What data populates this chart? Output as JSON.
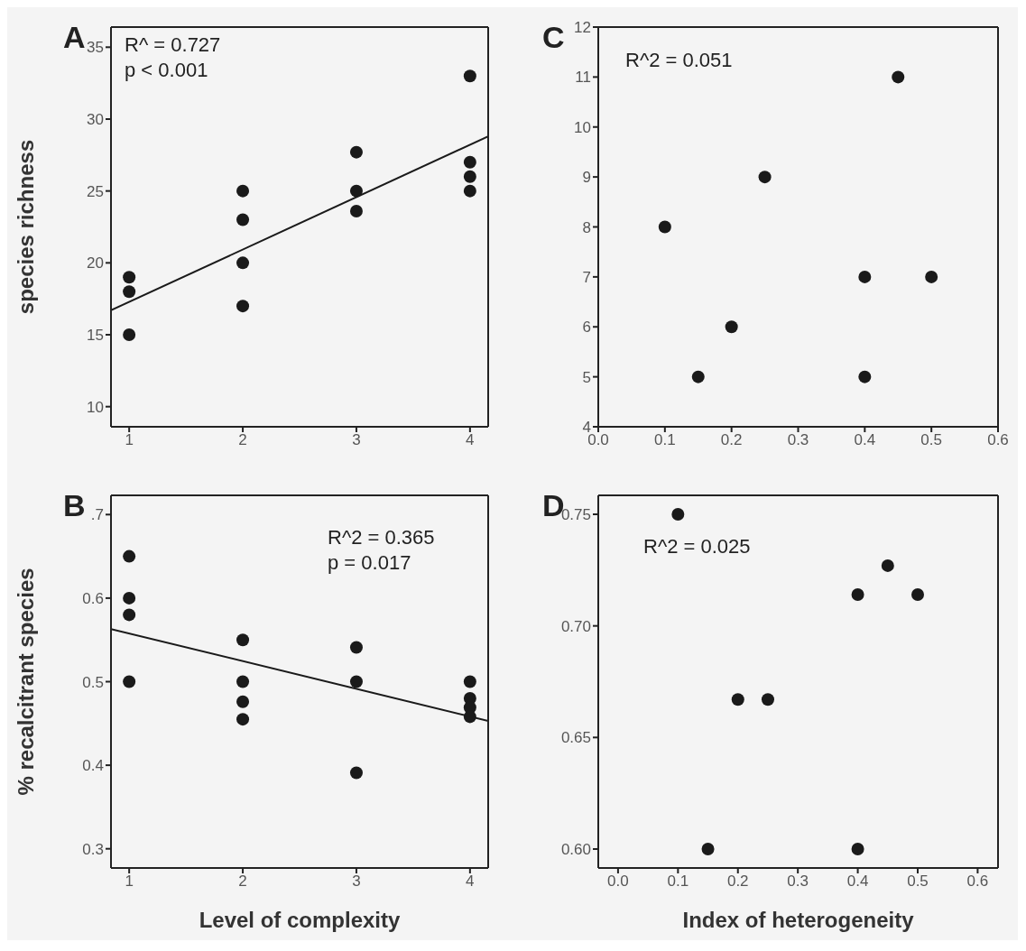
{
  "chart_data": [
    {
      "type": "scatter",
      "title": "A",
      "ylabel": "species richness",
      "annotations": [
        "R^ = 0.727",
        "p < 0.001"
      ],
      "xlim": [
        0.84,
        4.16
      ],
      "xticks": [
        1,
        2,
        3,
        4
      ],
      "ylim": [
        8.6,
        36.4
      ],
      "yticks": [
        10,
        15,
        20,
        25,
        30,
        35
      ],
      "series": [
        {
          "marker": "circle",
          "color": "#1a1a1a",
          "x": [
            1,
            1,
            1,
            2,
            2,
            2,
            2,
            3,
            3,
            3,
            4,
            4,
            4,
            4
          ],
          "values": [
            19,
            18,
            15,
            25,
            23,
            20,
            17,
            27.7,
            25,
            23.6,
            33,
            27,
            26,
            25
          ]
        },
        {
          "type": "line",
          "color": "#1a1a1a",
          "line_style": "solid",
          "x": [
            0.84,
            4.16
          ],
          "values": [
            16.7,
            28.8
          ]
        }
      ]
    },
    {
      "type": "scatter",
      "title": "C",
      "annotations": [
        "R^2 = 0.051"
      ],
      "xlim": [
        0,
        0.6
      ],
      "xticks": [
        {
          "value": 0,
          "label": "0.0"
        },
        0.1,
        0.2,
        0.3,
        0.4,
        0.5,
        0.6
      ],
      "ylim": [
        4,
        12
      ],
      "yticks": [
        4,
        5,
        6,
        7,
        8,
        9,
        10,
        11,
        12
      ],
      "series": [
        {
          "marker": "circle",
          "color": "#1a1a1a",
          "x": [
            0.1,
            0.15,
            0.2,
            0.25,
            0.4,
            0.4,
            0.45,
            0.5
          ],
          "values": [
            8,
            5,
            6,
            9,
            7,
            5,
            11,
            7
          ]
        }
      ]
    },
    {
      "type": "scatter",
      "title": "B",
      "xlabel": "Level of complexity",
      "ylabel": "% recalcitrant species",
      "annotations": [
        "R^2 = 0.365",
        "p = 0.017"
      ],
      "xlim": [
        0.84,
        4.16
      ],
      "xticks": [
        1,
        2,
        3,
        4
      ],
      "ylim": [
        0.277,
        0.723
      ],
      "yticks": [
        0.3,
        0.4,
        0.5,
        0.6,
        {
          "value": 0.7,
          "label": ".7"
        }
      ],
      "series": [
        {
          "marker": "circle",
          "color": "#1a1a1a",
          "x": [
            1,
            1,
            1,
            1,
            2,
            2,
            2,
            2,
            3,
            3,
            3,
            4,
            4,
            4,
            4
          ],
          "values": [
            0.65,
            0.6,
            0.58,
            0.5,
            0.55,
            0.5,
            0.476,
            0.455,
            0.541,
            0.5,
            0.391,
            0.5,
            0.48,
            0.469,
            0.458
          ]
        },
        {
          "type": "line",
          "color": "#1a1a1a",
          "line_style": "solid",
          "x": [
            0.84,
            4.16
          ],
          "values": [
            0.563,
            0.453
          ]
        }
      ]
    },
    {
      "type": "scatter",
      "title": "D",
      "xlabel": "Index of heterogeneity",
      "annotations": [
        "R^2 = 0.025"
      ],
      "xlim": [
        -0.033,
        0.634
      ],
      "xticks": [
        {
          "value": 0,
          "label": "0.0"
        },
        0.1,
        0.2,
        0.3,
        0.4,
        0.5,
        0.6
      ],
      "ylim": [
        0.5915,
        0.7585
      ],
      "yticks": [
        {
          "value": 0.6,
          "label": "0.60"
        },
        {
          "value": 0.65,
          "label": "0.65"
        },
        {
          "value": 0.7,
          "label": "0.70"
        },
        {
          "value": 0.75,
          "label": "0.75"
        }
      ],
      "series": [
        {
          "marker": "circle",
          "color": "#1a1a1a",
          "x": [
            0.1,
            0.15,
            0.2,
            0.25,
            0.4,
            0.45,
            0.5,
            0.4
          ],
          "values": [
            0.75,
            0.6,
            0.667,
            0.667,
            0.714,
            0.727,
            0.714,
            0.6
          ]
        }
      ]
    }
  ]
}
